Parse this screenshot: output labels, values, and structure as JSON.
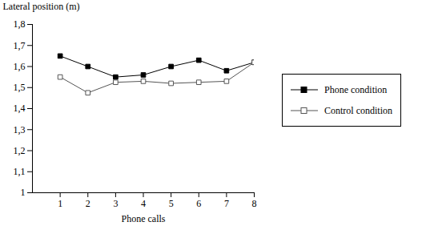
{
  "chart_data": {
    "type": "line",
    "x_label": "Phone calls",
    "y_label": "Lateral position (m)",
    "x": [
      1,
      2,
      3,
      4,
      5,
      6,
      7,
      8
    ],
    "series": [
      {
        "name": "Phone condition",
        "color": "#000000",
        "marker": "filled-square",
        "values": [
          1.65,
          1.6,
          1.55,
          1.56,
          1.6,
          1.63,
          1.58,
          1.62
        ]
      },
      {
        "name": "Control condition",
        "color": "#555555",
        "marker": "open-square",
        "values": [
          1.55,
          1.475,
          1.525,
          1.53,
          1.52,
          1.525,
          1.53,
          1.62
        ]
      }
    ],
    "xlim": [
      0,
      8
    ],
    "xticks": [
      1,
      2,
      3,
      4,
      5,
      6,
      7,
      8
    ],
    "ylim": [
      1,
      1.8
    ],
    "yticks": [
      1,
      {
        "value": 1.1,
        "label": "1,1"
      },
      {
        "value": 1.2,
        "label": "1,2"
      },
      {
        "value": 1.3,
        "label": "1,3"
      },
      {
        "value": 1.4,
        "label": "1,4"
      },
      {
        "value": 1.5,
        "label": "1,5"
      },
      {
        "value": 1.6,
        "label": "1,6"
      },
      {
        "value": 1.7,
        "label": "1,7"
      },
      {
        "value": 1.8,
        "label": "1,8"
      }
    ],
    "legend": "right",
    "grid": false
  }
}
